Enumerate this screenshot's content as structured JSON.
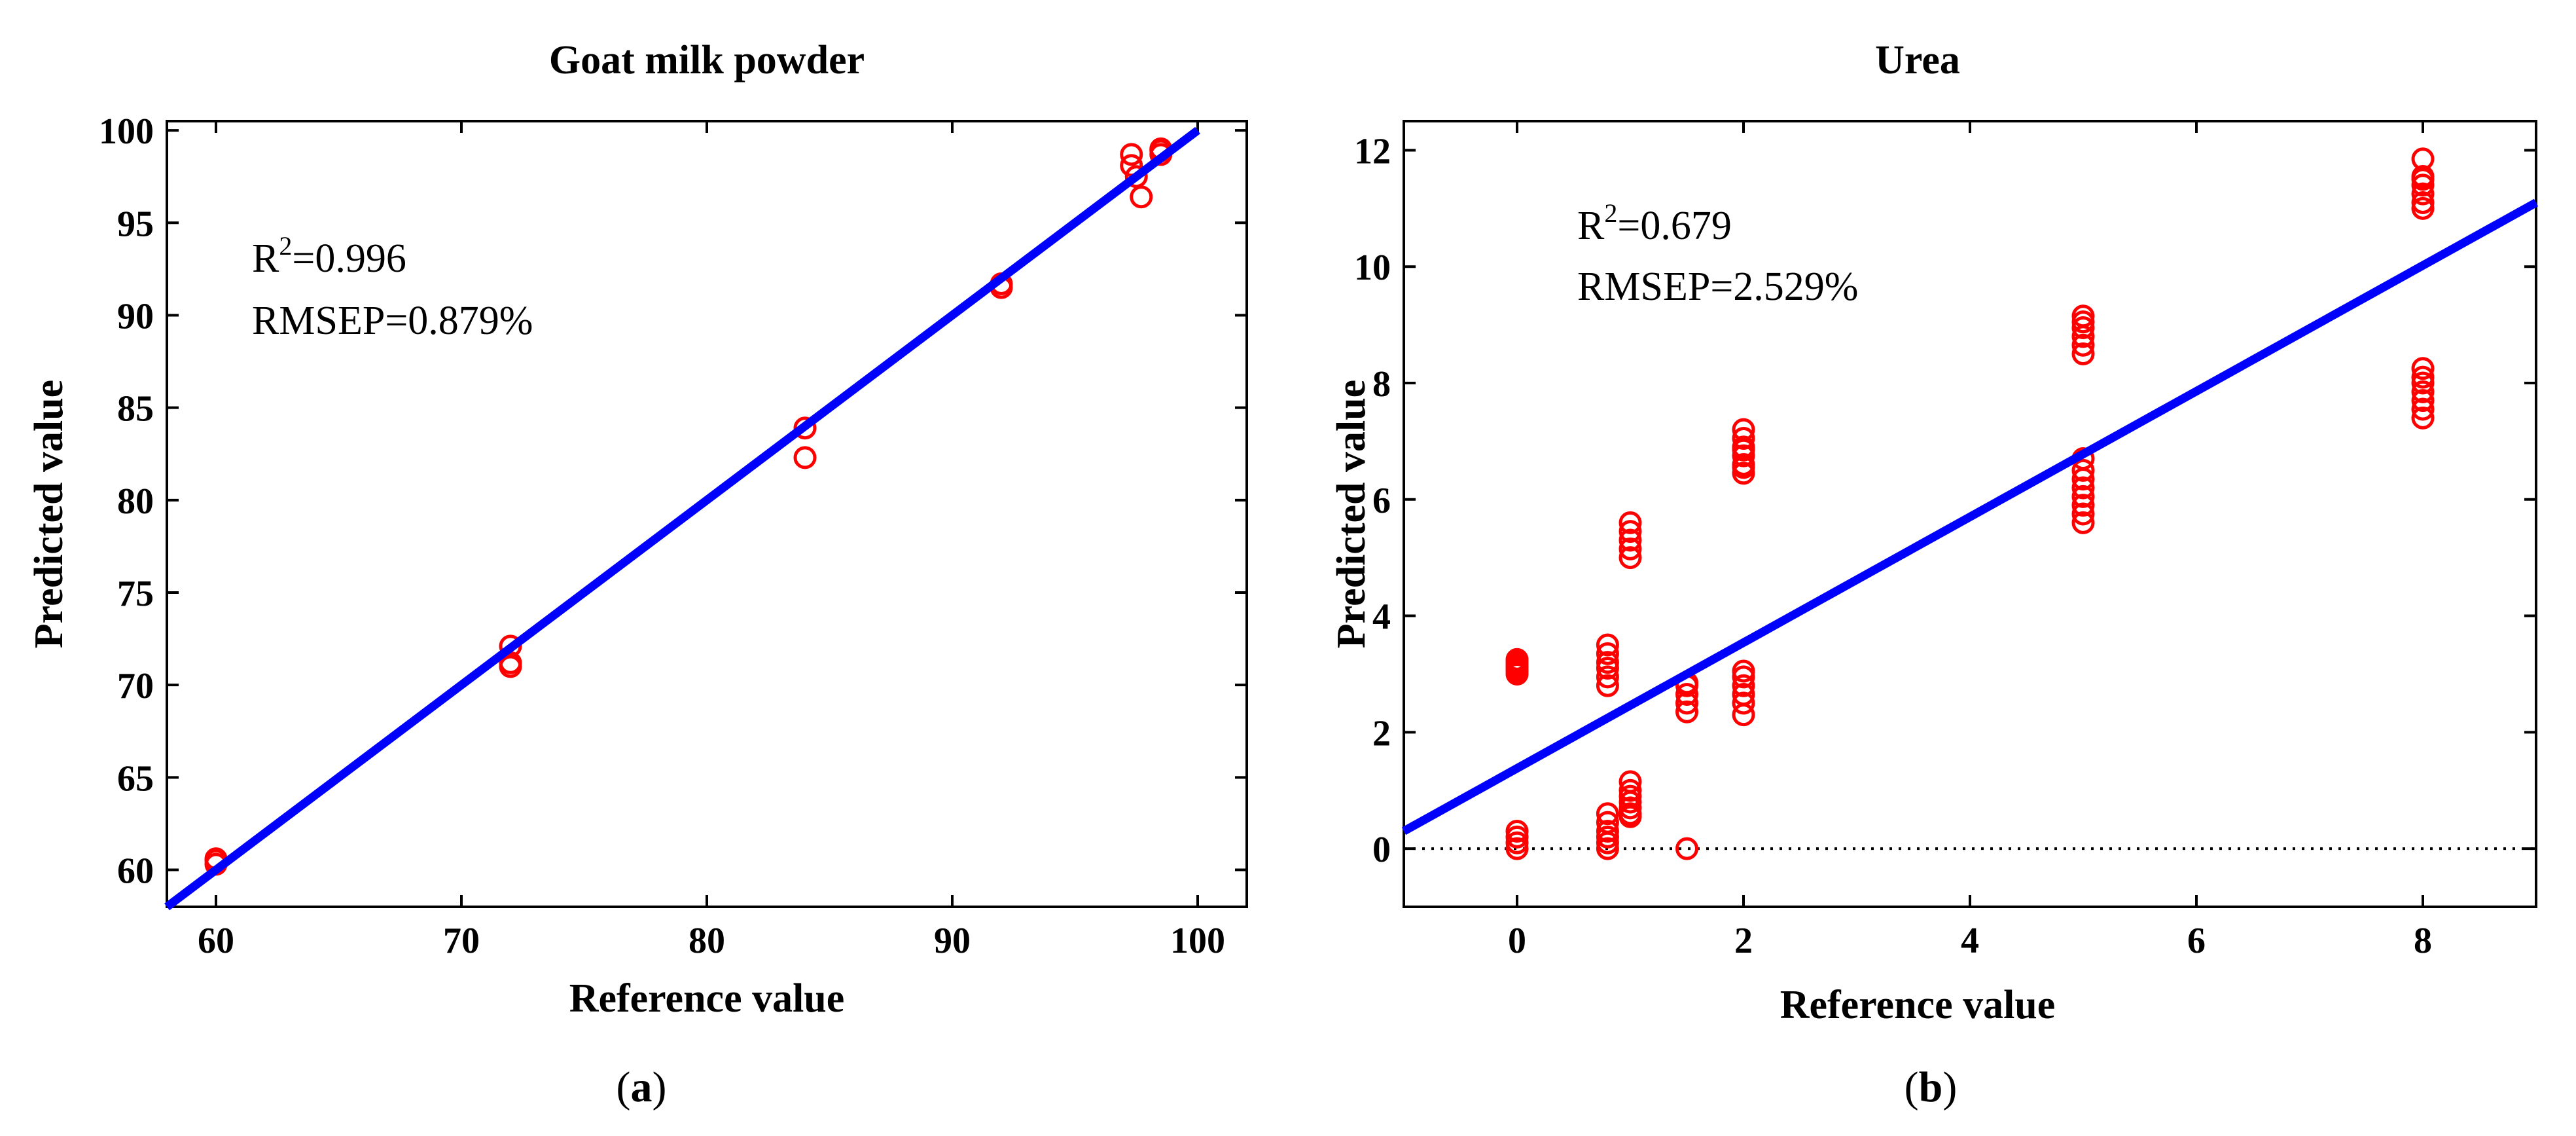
{
  "chart_data": [
    {
      "type": "scatter",
      "panel_label": "(a)",
      "panel_letter": "a",
      "title": "Goat milk powder",
      "xlabel": "Reference value",
      "ylabel": "Predicted value",
      "xlim": [
        58,
        102
      ],
      "ylim": [
        58,
        100.5
      ],
      "xticks": [
        60,
        70,
        80,
        90,
        100
      ],
      "yticks": [
        60,
        65,
        70,
        75,
        80,
        85,
        90,
        95,
        100
      ],
      "grid": false,
      "annotations": {
        "r2_prefix": "R",
        "r2_exp": "2",
        "r2_value": "=0.996",
        "rmsep": "RMSEP=0.879%"
      },
      "fit_line": {
        "color": "#0000ff",
        "x": [
          58,
          100
        ],
        "y": [
          58,
          100
        ]
      },
      "marker_color": "#ff0000",
      "points": {
        "x": [
          60,
          60,
          60,
          72,
          72,
          72,
          84,
          84,
          92,
          92,
          97.3,
          97.3,
          97.5,
          97.7,
          98.5,
          98.5,
          98.5
        ],
        "y": [
          60.3,
          60.5,
          60.6,
          71.0,
          71.2,
          72.1,
          82.3,
          83.9,
          91.5,
          91.7,
          98.1,
          98.7,
          97.5,
          96.4,
          98.7,
          99.0,
          98.9
        ]
      }
    },
    {
      "type": "scatter",
      "panel_label": "(b)",
      "panel_letter": "b",
      "title": "Urea",
      "xlabel": "Reference value",
      "ylabel": "Predicted value",
      "xlim": [
        -1,
        9
      ],
      "ylim": [
        -1,
        12.5
      ],
      "xticks": [
        0,
        2,
        4,
        6,
        8
      ],
      "yticks": [
        0,
        2,
        4,
        6,
        8,
        10,
        12
      ],
      "grid": false,
      "annotations": {
        "r2_prefix": "R",
        "r2_exp": "2",
        "r2_value": "=0.679",
        "rmsep": "RMSEP=2.529%"
      },
      "fit_line": {
        "color": "#0000ff",
        "x": [
          -1,
          9
        ],
        "y": [
          0.3,
          11.1
        ]
      },
      "zero_line": {
        "y": 0,
        "style": "dotted"
      },
      "marker_color": "#ff0000",
      "points": {
        "x": [
          0,
          0,
          0,
          0,
          0,
          0,
          0,
          0,
          0,
          0,
          0.8,
          0.8,
          0.8,
          0.8,
          0.8,
          0.8,
          0.8,
          0.8,
          0.8,
          0.8,
          0.8,
          0.8,
          1,
          1,
          1,
          1,
          1,
          1,
          1,
          1,
          1,
          1,
          1,
          1,
          1.5,
          1.5,
          1.5,
          1.5,
          1.5,
          1.5,
          2,
          2,
          2,
          2,
          2,
          2,
          2,
          2,
          2,
          2,
          2,
          2,
          2,
          2,
          5,
          5,
          5,
          5,
          5,
          5,
          5,
          5,
          5,
          5,
          5,
          5,
          5,
          5,
          8,
          8,
          8,
          8,
          8,
          8,
          8,
          8,
          8,
          8,
          8,
          8,
          8,
          8
        ],
        "y": [
          3.0,
          3.05,
          3.1,
          3.15,
          3.2,
          3.25,
          0.0,
          0.1,
          0.2,
          0.3,
          2.8,
          2.95,
          3.1,
          3.2,
          3.35,
          3.5,
          0.0,
          0.1,
          0.2,
          0.3,
          0.45,
          0.6,
          5.0,
          5.15,
          5.3,
          5.45,
          5.6,
          0.55,
          0.7,
          0.8,
          0.9,
          1.0,
          1.15,
          0.6,
          2.35,
          2.5,
          2.65,
          2.8,
          2.85,
          0.0,
          6.45,
          6.6,
          6.75,
          6.9,
          7.05,
          7.2,
          2.3,
          2.5,
          2.65,
          2.8,
          2.95,
          3.05,
          6.55,
          6.85,
          8.5,
          8.65,
          8.8,
          8.95,
          9.05,
          9.15,
          5.6,
          5.75,
          5.9,
          6.05,
          6.2,
          6.35,
          6.5,
          6.7,
          11.0,
          11.1,
          11.25,
          11.4,
          11.55,
          11.85,
          7.4,
          7.55,
          7.7,
          7.85,
          8.0,
          8.1,
          8.25,
          11.5
        ]
      }
    }
  ]
}
